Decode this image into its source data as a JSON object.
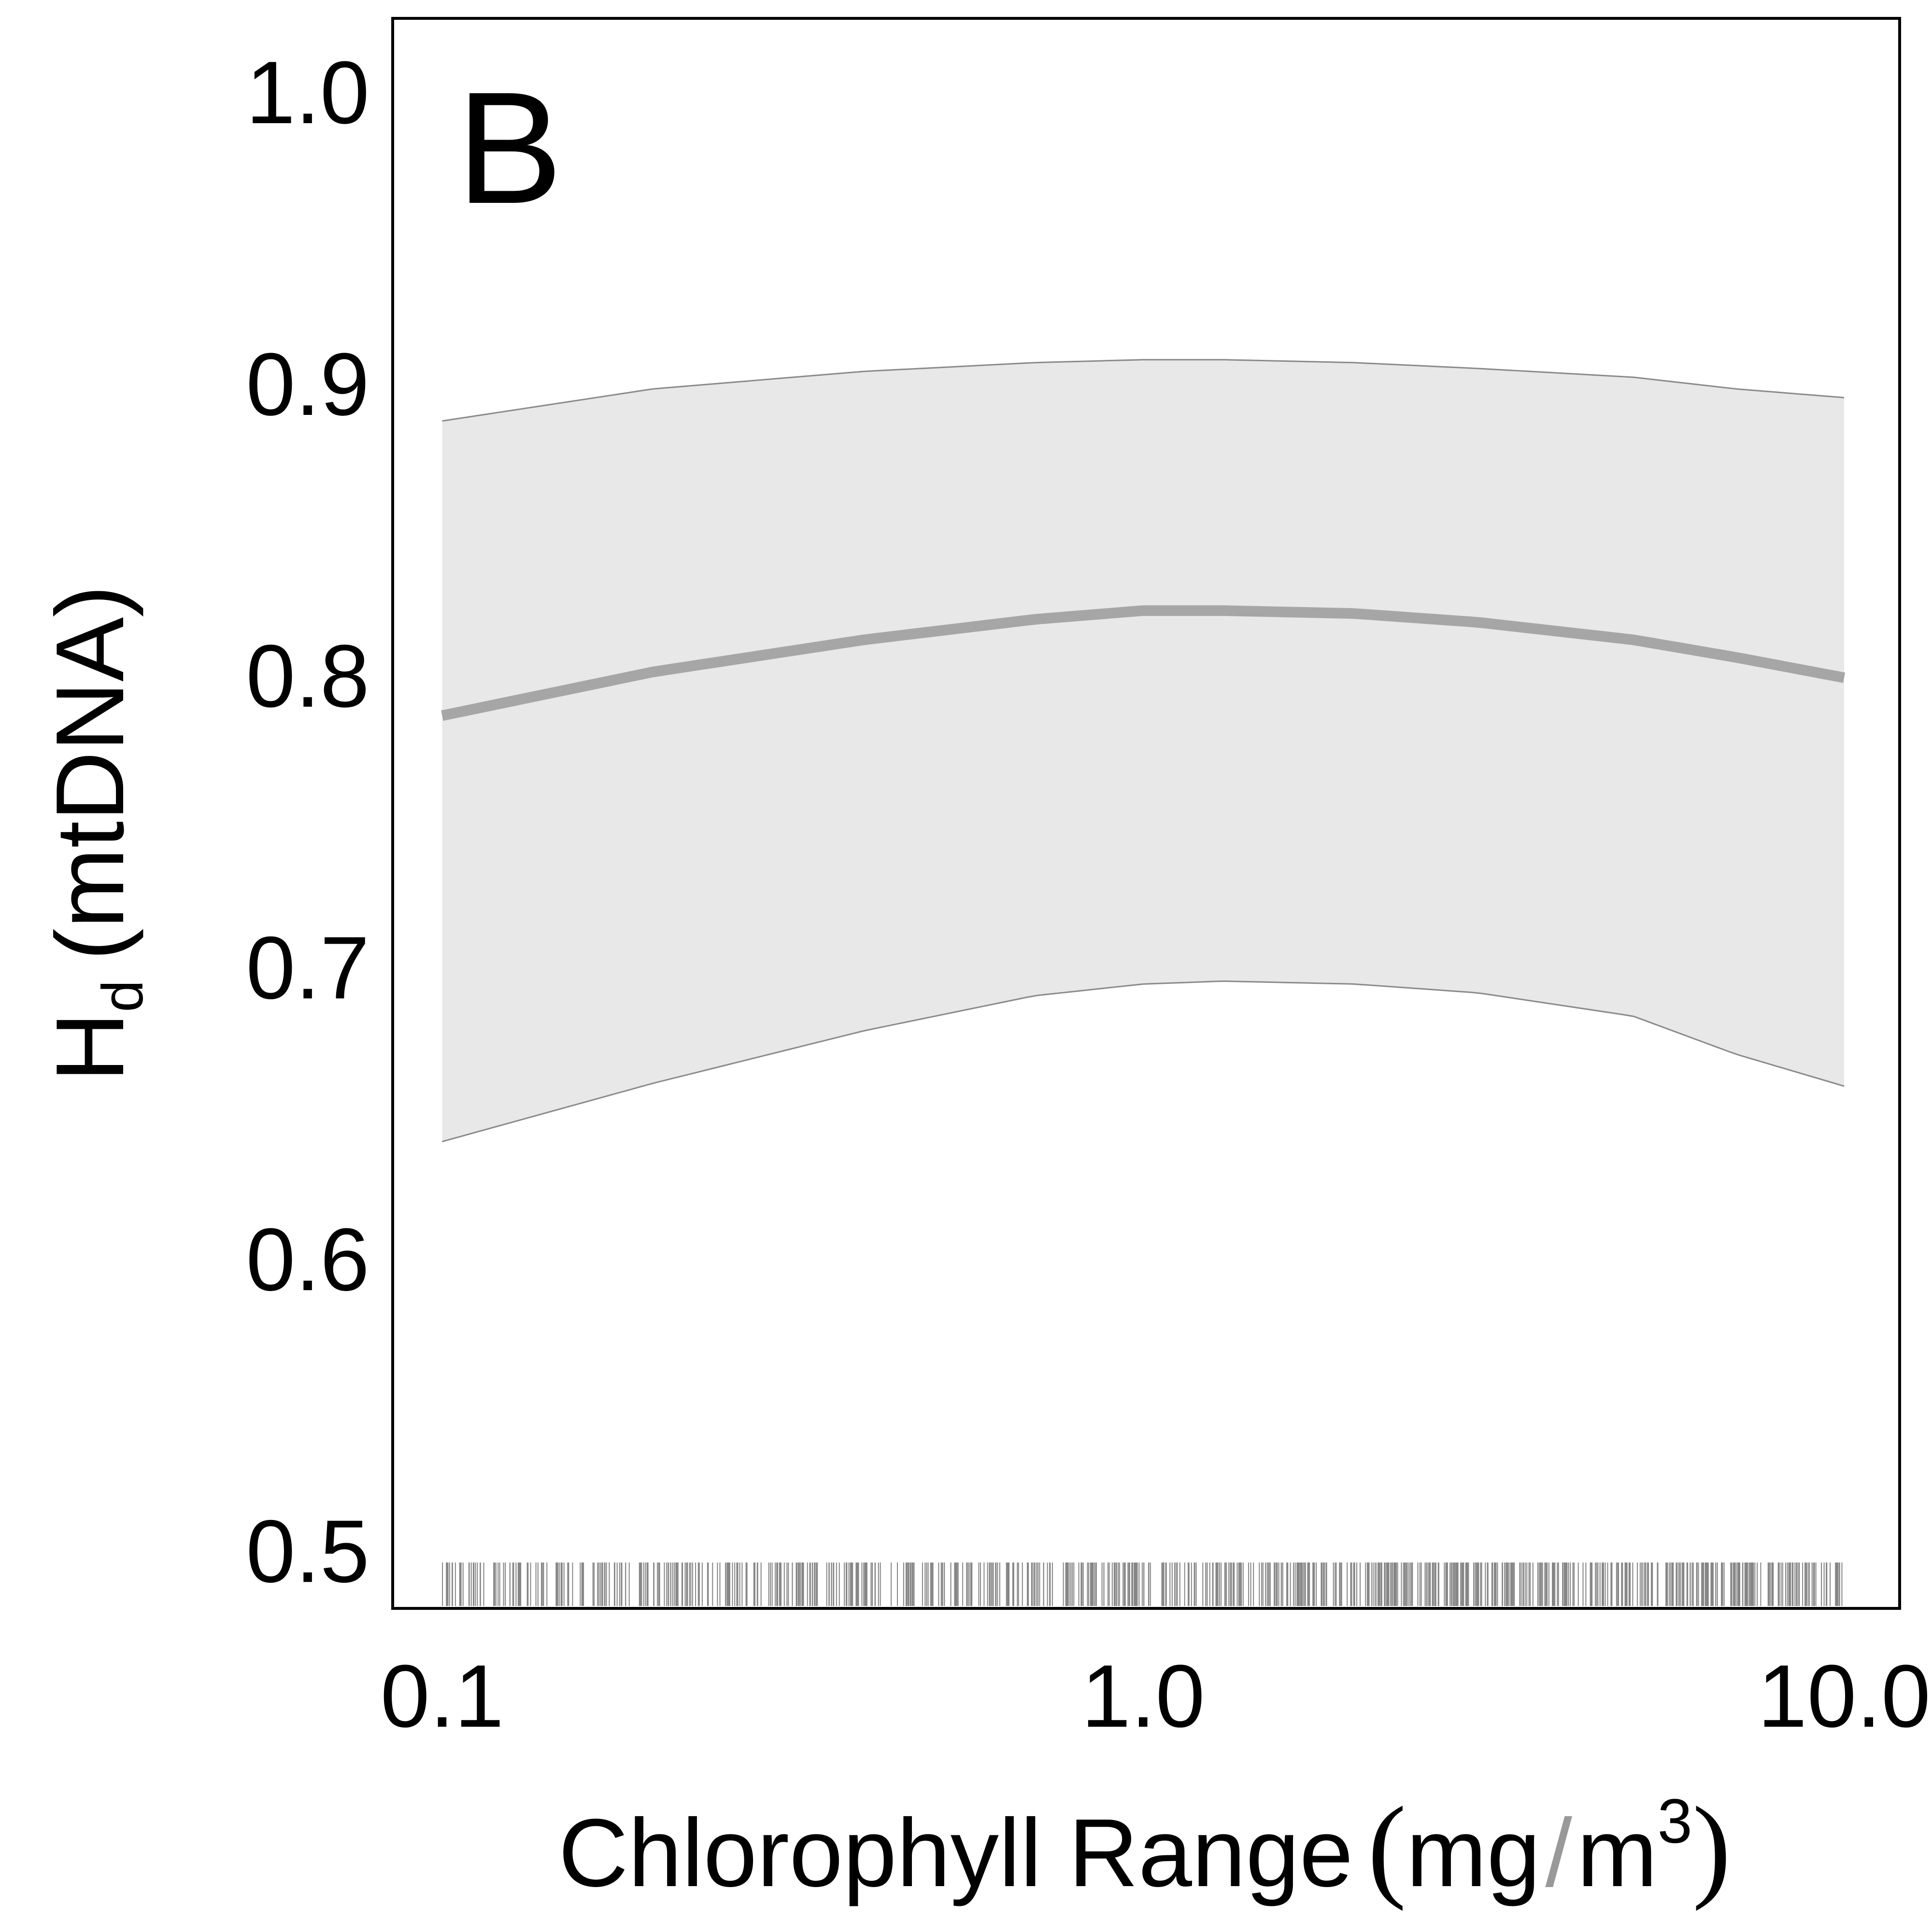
{
  "chart_data": {
    "type": "line",
    "panel_label": "B",
    "x_scale": "log",
    "xlim": [
      0.085,
      12.0
    ],
    "ylim": [
      0.48,
      1.025
    ],
    "x_ticks": [
      0.1,
      1.0,
      10.0
    ],
    "x_tick_labels": [
      "0.1",
      "1.0",
      "10.0"
    ],
    "y_ticks": [
      0.5,
      0.6,
      0.7,
      0.8,
      0.9,
      1.0
    ],
    "y_tick_labels": [
      "0.5",
      "0.6",
      "0.7",
      "0.8",
      "0.9",
      "1.0"
    ],
    "xlabel": {
      "main": "Chlorophyll Range",
      "unit_open": "(",
      "unit_num": "mg",
      "unit_sep": "/",
      "unit_den": "m",
      "unit_exp": "3",
      "unit_close": ")"
    },
    "ylabel": {
      "main": "H",
      "sub": "d",
      "rest": "(mtDNA)"
    },
    "grid": false,
    "series": [
      {
        "x": [
          0.1,
          0.2,
          0.4,
          0.7,
          1.0,
          1.3,
          2.0,
          3.0,
          5.0,
          7.0,
          10.0
        ],
        "fit": [
          0.786,
          0.801,
          0.812,
          0.819,
          0.822,
          0.822,
          0.821,
          0.818,
          0.812,
          0.806,
          0.799
        ],
        "lower": [
          0.64,
          0.66,
          0.678,
          0.69,
          0.694,
          0.695,
          0.694,
          0.691,
          0.683,
          0.67,
          0.659
        ],
        "upper": [
          0.887,
          0.898,
          0.904,
          0.907,
          0.908,
          0.908,
          0.907,
          0.905,
          0.902,
          0.898,
          0.895
        ]
      }
    ],
    "colors": {
      "fit_line": "#a6a6a6",
      "band": "#e8e8e8",
      "band_edge": "#8a8a8a",
      "rug": "#222222"
    }
  }
}
